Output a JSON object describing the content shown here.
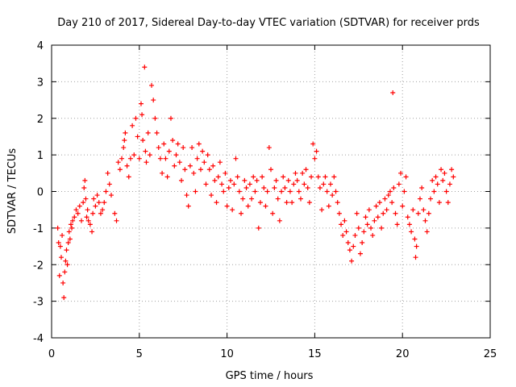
{
  "chart_data": {
    "type": "scatter",
    "title": "Day 210 of 2017, Sidereal Day-to-day VTEC variation (SDTVAR) for receiver prds",
    "xlabel": "GPS time / hours",
    "ylabel": "SDTVAR / TECUs",
    "xlim": [
      0,
      25
    ],
    "ylim": [
      -4,
      4
    ],
    "xticks": [
      "0",
      "5",
      "10",
      "15",
      "20",
      "25"
    ],
    "yticks": [
      "-4",
      "-3",
      "-2",
      "-1",
      "0",
      "1",
      "2",
      "3",
      "4"
    ],
    "grid": true,
    "marker": "+",
    "color": "#ff0000",
    "series": [
      {
        "name": "SDTVAR",
        "points": [
          [
            0.35,
            -1.0
          ],
          [
            0.4,
            -1.4
          ],
          [
            0.45,
            -2.3
          ],
          [
            0.5,
            -1.5
          ],
          [
            0.55,
            -1.8
          ],
          [
            0.6,
            -1.2
          ],
          [
            0.65,
            -2.5
          ],
          [
            0.7,
            -2.9
          ],
          [
            0.75,
            -2.2
          ],
          [
            0.8,
            -1.9
          ],
          [
            0.85,
            -1.6
          ],
          [
            0.9,
            -2.0
          ],
          [
            0.95,
            -1.4
          ],
          [
            1.0,
            -1.1
          ],
          [
            1.05,
            -1.3
          ],
          [
            1.1,
            -0.9
          ],
          [
            1.15,
            -1.0
          ],
          [
            1.2,
            -0.8
          ],
          [
            1.3,
            -0.7
          ],
          [
            1.4,
            -0.5
          ],
          [
            1.5,
            -0.6
          ],
          [
            1.6,
            -0.4
          ],
          [
            1.7,
            -0.8
          ],
          [
            1.8,
            -0.3
          ],
          [
            1.85,
            0.1
          ],
          [
            1.9,
            0.3
          ],
          [
            1.95,
            -0.2
          ],
          [
            2.0,
            -0.7
          ],
          [
            2.05,
            -0.5
          ],
          [
            2.1,
            -0.8
          ],
          [
            2.2,
            -0.9
          ],
          [
            2.3,
            -1.1
          ],
          [
            2.35,
            -0.6
          ],
          [
            2.4,
            -0.2
          ],
          [
            2.5,
            -0.4
          ],
          [
            2.6,
            -0.1
          ],
          [
            2.7,
            -0.3
          ],
          [
            2.8,
            -0.6
          ],
          [
            2.9,
            -0.5
          ],
          [
            3.0,
            -0.3
          ],
          [
            3.1,
            0.0
          ],
          [
            3.2,
            0.5
          ],
          [
            3.3,
            0.2
          ],
          [
            3.4,
            -0.1
          ],
          [
            3.6,
            -0.6
          ],
          [
            3.7,
            -0.8
          ],
          [
            3.8,
            0.8
          ],
          [
            3.9,
            0.6
          ],
          [
            4.0,
            0.9
          ],
          [
            4.1,
            1.2
          ],
          [
            4.15,
            1.4
          ],
          [
            4.2,
            1.6
          ],
          [
            4.3,
            0.7
          ],
          [
            4.4,
            0.4
          ],
          [
            4.5,
            0.9
          ],
          [
            4.6,
            1.8
          ],
          [
            4.7,
            1.0
          ],
          [
            4.8,
            2.0
          ],
          [
            4.9,
            1.5
          ],
          [
            5.0,
            0.9
          ],
          [
            5.1,
            2.4
          ],
          [
            5.15,
            2.1
          ],
          [
            5.2,
            1.4
          ],
          [
            5.3,
            3.4
          ],
          [
            5.35,
            1.1
          ],
          [
            5.4,
            0.8
          ],
          [
            5.5,
            1.6
          ],
          [
            5.6,
            1.0
          ],
          [
            5.7,
            2.9
          ],
          [
            5.8,
            2.5
          ],
          [
            5.9,
            2.0
          ],
          [
            6.0,
            1.6
          ],
          [
            6.1,
            1.2
          ],
          [
            6.2,
            0.9
          ],
          [
            6.3,
            0.5
          ],
          [
            6.4,
            1.3
          ],
          [
            6.5,
            0.9
          ],
          [
            6.6,
            0.4
          ],
          [
            6.7,
            1.1
          ],
          [
            6.8,
            2.0
          ],
          [
            6.9,
            1.4
          ],
          [
            7.0,
            0.7
          ],
          [
            7.1,
            1.0
          ],
          [
            7.2,
            1.3
          ],
          [
            7.3,
            0.8
          ],
          [
            7.4,
            0.3
          ],
          [
            7.5,
            1.2
          ],
          [
            7.6,
            0.6
          ],
          [
            7.7,
            -0.1
          ],
          [
            7.8,
            -0.4
          ],
          [
            7.9,
            0.7
          ],
          [
            8.0,
            1.2
          ],
          [
            8.1,
            0.5
          ],
          [
            8.2,
            0.0
          ],
          [
            8.3,
            0.9
          ],
          [
            8.4,
            1.3
          ],
          [
            8.5,
            0.6
          ],
          [
            8.6,
            1.1
          ],
          [
            8.7,
            0.8
          ],
          [
            8.8,
            0.2
          ],
          [
            8.9,
            1.0
          ],
          [
            9.0,
            0.6
          ],
          [
            9.1,
            -0.1
          ],
          [
            9.2,
            0.7
          ],
          [
            9.3,
            0.3
          ],
          [
            9.4,
            -0.3
          ],
          [
            9.5,
            0.4
          ],
          [
            9.6,
            0.8
          ],
          [
            9.7,
            0.2
          ],
          [
            9.8,
            0.0
          ],
          [
            9.9,
            0.5
          ],
          [
            10.0,
            -0.4
          ],
          [
            10.1,
            0.1
          ],
          [
            10.2,
            0.3
          ],
          [
            10.3,
            -0.5
          ],
          [
            10.4,
            0.2
          ],
          [
            10.5,
            0.9
          ],
          [
            10.6,
            0.4
          ],
          [
            10.7,
            0.0
          ],
          [
            10.8,
            -0.6
          ],
          [
            10.9,
            -0.2
          ],
          [
            11.0,
            0.3
          ],
          [
            11.1,
            0.1
          ],
          [
            11.2,
            -0.4
          ],
          [
            11.3,
            0.2
          ],
          [
            11.4,
            -0.2
          ],
          [
            11.5,
            0.4
          ],
          [
            11.6,
            0.0
          ],
          [
            11.7,
            0.3
          ],
          [
            11.8,
            -1.0
          ],
          [
            11.9,
            -0.3
          ],
          [
            12.0,
            0.4
          ],
          [
            12.1,
            0.1
          ],
          [
            12.2,
            -0.4
          ],
          [
            12.3,
            0.0
          ],
          [
            12.4,
            1.2
          ],
          [
            12.5,
            0.6
          ],
          [
            12.6,
            -0.6
          ],
          [
            12.7,
            0.1
          ],
          [
            12.8,
            0.3
          ],
          [
            12.9,
            -0.2
          ],
          [
            13.0,
            -0.8
          ],
          [
            13.1,
            0.0
          ],
          [
            13.2,
            0.4
          ],
          [
            13.3,
            0.1
          ],
          [
            13.4,
            -0.3
          ],
          [
            13.5,
            0.3
          ],
          [
            13.6,
            0.0
          ],
          [
            13.7,
            -0.3
          ],
          [
            13.8,
            0.2
          ],
          [
            13.9,
            0.5
          ],
          [
            14.0,
            0.3
          ],
          [
            14.1,
            0.0
          ],
          [
            14.2,
            -0.2
          ],
          [
            14.3,
            0.5
          ],
          [
            14.4,
            0.2
          ],
          [
            14.5,
            0.6
          ],
          [
            14.6,
            0.1
          ],
          [
            14.7,
            -0.3
          ],
          [
            14.8,
            0.4
          ],
          [
            14.9,
            1.3
          ],
          [
            15.0,
            0.9
          ],
          [
            15.1,
            1.1
          ],
          [
            15.2,
            0.4
          ],
          [
            15.3,
            0.1
          ],
          [
            15.4,
            -0.5
          ],
          [
            15.5,
            0.2
          ],
          [
            15.6,
            0.4
          ],
          [
            15.7,
            0.0
          ],
          [
            15.8,
            -0.4
          ],
          [
            15.9,
            0.2
          ],
          [
            16.0,
            -0.1
          ],
          [
            16.1,
            0.4
          ],
          [
            16.2,
            0.0
          ],
          [
            16.3,
            -0.3
          ],
          [
            16.4,
            -0.6
          ],
          [
            16.5,
            -0.9
          ],
          [
            16.6,
            -1.2
          ],
          [
            16.7,
            -0.8
          ],
          [
            16.8,
            -1.1
          ],
          [
            16.9,
            -1.4
          ],
          [
            17.0,
            -1.6
          ],
          [
            17.1,
            -1.9
          ],
          [
            17.2,
            -1.5
          ],
          [
            17.3,
            -1.2
          ],
          [
            17.4,
            -0.6
          ],
          [
            17.5,
            -1.0
          ],
          [
            17.6,
            -1.7
          ],
          [
            17.7,
            -1.4
          ],
          [
            17.8,
            -1.1
          ],
          [
            17.9,
            -0.7
          ],
          [
            18.0,
            -0.9
          ],
          [
            18.1,
            -0.5
          ],
          [
            18.2,
            -1.0
          ],
          [
            18.3,
            -1.2
          ],
          [
            18.4,
            -0.8
          ],
          [
            18.5,
            -0.4
          ],
          [
            18.6,
            -0.7
          ],
          [
            18.7,
            -0.3
          ],
          [
            18.8,
            -1.0
          ],
          [
            18.9,
            -0.6
          ],
          [
            19.0,
            -0.2
          ],
          [
            19.1,
            -0.5
          ],
          [
            19.2,
            -0.1
          ],
          [
            19.3,
            0.0
          ],
          [
            19.4,
            -0.3
          ],
          [
            19.45,
            2.7
          ],
          [
            19.5,
            0.1
          ],
          [
            19.6,
            -0.6
          ],
          [
            19.7,
            -0.9
          ],
          [
            19.8,
            0.2
          ],
          [
            19.9,
            0.5
          ],
          [
            20.0,
            -0.4
          ],
          [
            20.1,
            0.0
          ],
          [
            20.2,
            0.4
          ],
          [
            20.3,
            -0.7
          ],
          [
            20.4,
            -0.9
          ],
          [
            20.5,
            -1.1
          ],
          [
            20.6,
            -0.5
          ],
          [
            20.7,
            -1.3
          ],
          [
            20.75,
            -1.8
          ],
          [
            20.8,
            -1.5
          ],
          [
            20.9,
            -0.6
          ],
          [
            21.0,
            -0.2
          ],
          [
            21.1,
            0.1
          ],
          [
            21.2,
            -0.5
          ],
          [
            21.3,
            -0.8
          ],
          [
            21.4,
            -1.1
          ],
          [
            21.5,
            -0.6
          ],
          [
            21.6,
            -0.2
          ],
          [
            21.7,
            0.3
          ],
          [
            21.8,
            0.0
          ],
          [
            21.9,
            0.4
          ],
          [
            22.0,
            0.2
          ],
          [
            22.1,
            -0.3
          ],
          [
            22.2,
            0.6
          ],
          [
            22.3,
            0.3
          ],
          [
            22.4,
            0.5
          ],
          [
            22.5,
            0.0
          ],
          [
            22.6,
            -0.3
          ],
          [
            22.7,
            0.2
          ],
          [
            22.8,
            0.6
          ],
          [
            22.9,
            0.4
          ]
        ]
      }
    ]
  }
}
